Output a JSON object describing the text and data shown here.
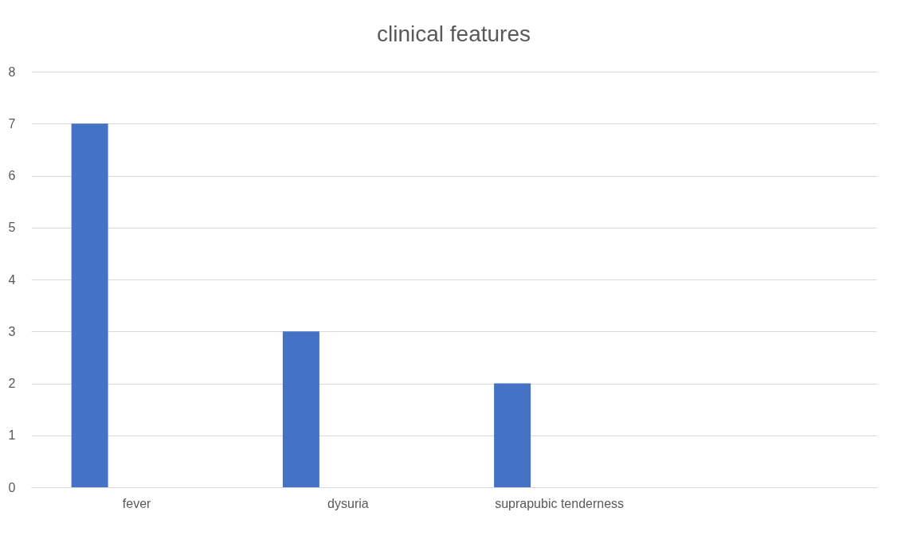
{
  "chart_data": {
    "type": "bar",
    "title": "clinical features",
    "categories": [
      "fever",
      "dysuria",
      "suprapubic tenderness",
      null
    ],
    "values": [
      7,
      3,
      2,
      null
    ],
    "color": "#4472c4",
    "ylim": [
      0,
      8
    ],
    "yticks": [
      0,
      1,
      2,
      3,
      4,
      5,
      6,
      7,
      8
    ],
    "grid": "y"
  }
}
